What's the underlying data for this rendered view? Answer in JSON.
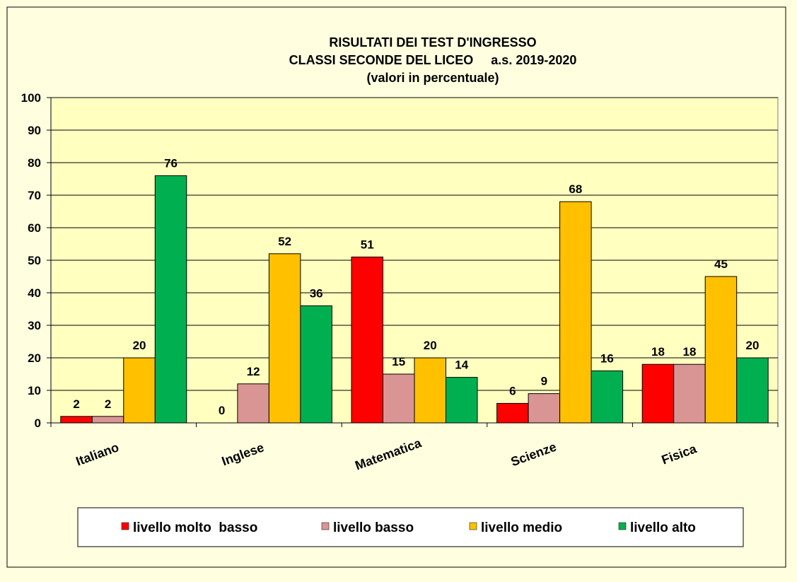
{
  "chart_data": {
    "type": "bar",
    "title": [
      "RISULTATI DEI TEST D'INGRESSO",
      "CLASSI SECONDE DEL LICEO     a.s. 2019-2020",
      "(valori in percentuale)"
    ],
    "categories": [
      "Italiano",
      "Inglese",
      "Matematica",
      "Scienze",
      "Fisica"
    ],
    "series": [
      {
        "name": "livello molto  basso",
        "color": "#ff0000",
        "values": [
          2,
          0,
          51,
          6,
          18
        ]
      },
      {
        "name": "livello basso",
        "color": "#d99594",
        "values": [
          2,
          12,
          15,
          9,
          18
        ]
      },
      {
        "name": "livello medio",
        "color": "#ffc000",
        "values": [
          20,
          52,
          20,
          68,
          45
        ]
      },
      {
        "name": "livello alto",
        "color": "#00b050",
        "values": [
          76,
          36,
          14,
          16,
          20
        ]
      }
    ],
    "ylim": [
      0,
      100
    ],
    "yticks": [
      0,
      10,
      20,
      30,
      40,
      50,
      60,
      70,
      80,
      90,
      100
    ],
    "grid": true
  }
}
